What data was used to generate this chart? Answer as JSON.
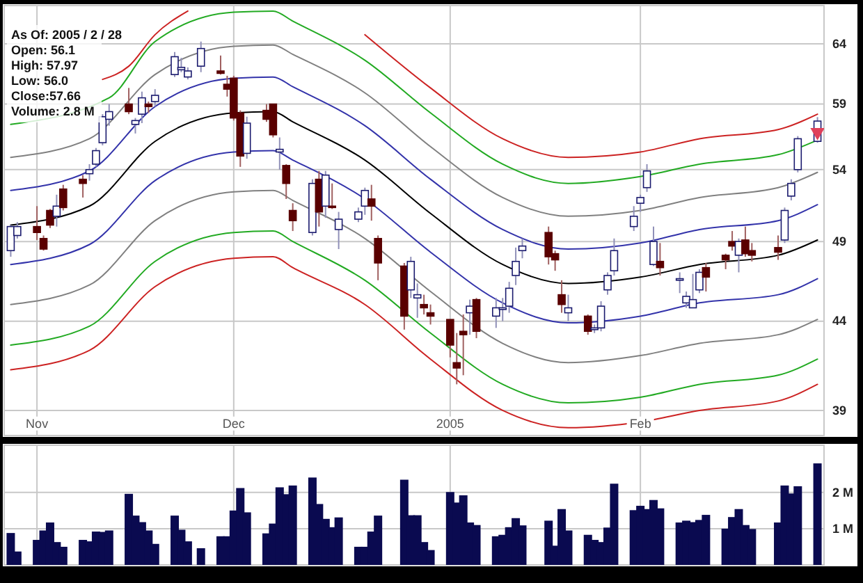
{
  "chart_data": [
    {
      "type": "candlestick",
      "log": true,
      "grid": true,
      "annotations": [
        "As Of: 2005 / 2 / 28",
        "Open: 56.1",
        "High: 57.97",
        "Low: 56.0",
        "Close:57.66",
        "Volume: 2.8 M"
      ],
      "xlim": [
        "2004-10-27",
        "2005-03-01"
      ],
      "xticks": [
        {
          "value": "2004-11-01",
          "label": "Nov"
        },
        {
          "value": "2004-12-01",
          "label": "Dec"
        },
        {
          "value": "2005-01-03",
          "label": "2005"
        },
        {
          "value": "2005-02-01",
          "label": "Feb"
        }
      ],
      "ylim": [
        37.7,
        67.4
      ],
      "yticks": [
        39,
        44,
        49,
        54,
        59,
        64
      ],
      "x": [
        "2004-10-28",
        "2004-10-29",
        "2004-11-01",
        "2004-11-02",
        "2004-11-03",
        "2004-11-04",
        "2004-11-05",
        "2004-11-08",
        "2004-11-09",
        "2004-11-10",
        "2004-11-11",
        "2004-11-12",
        "2004-11-15",
        "2004-11-16",
        "2004-11-17",
        "2004-11-18",
        "2004-11-19",
        "2004-11-22",
        "2004-11-23",
        "2004-11-24",
        "2004-11-26",
        "2004-11-29",
        "2004-11-30",
        "2004-12-01",
        "2004-12-02",
        "2004-12-03",
        "2004-12-06",
        "2004-12-07",
        "2004-12-08",
        "2004-12-09",
        "2004-12-10",
        "2004-12-13",
        "2004-12-14",
        "2004-12-15",
        "2004-12-16",
        "2004-12-17",
        "2004-12-20",
        "2004-12-21",
        "2004-12-22",
        "2004-12-23",
        "2004-12-27",
        "2004-12-28",
        "2004-12-29",
        "2004-12-30",
        "2004-12-31",
        "2005-01-03",
        "2005-01-04",
        "2005-01-05",
        "2005-01-06",
        "2005-01-07",
        "2005-01-10",
        "2005-01-11",
        "2005-01-12",
        "2005-01-13",
        "2005-01-14",
        "2005-01-18",
        "2005-01-19",
        "2005-01-20",
        "2005-01-21",
        "2005-01-24",
        "2005-01-25",
        "2005-01-26",
        "2005-01-27",
        "2005-01-28",
        "2005-01-31",
        "2005-02-01",
        "2005-02-02",
        "2005-02-03",
        "2005-02-04",
        "2005-02-07",
        "2005-02-08",
        "2005-02-09",
        "2005-02-10",
        "2005-02-11",
        "2005-02-14",
        "2005-02-15",
        "2005-02-16",
        "2005-02-17",
        "2005-02-18",
        "2005-02-22",
        "2005-02-23",
        "2005-02-24",
        "2005-02-25",
        "2005-02-28"
      ],
      "ohlc": [
        [
          48.4,
          50.1,
          48.0,
          50.0
        ],
        [
          49.4,
          50.3,
          49.2,
          50.0
        ],
        [
          50.0,
          51.4,
          49.1,
          49.6
        ],
        [
          49.2,
          49.4,
          48.4,
          48.5
        ],
        [
          51.1,
          51.2,
          49.9,
          50.1
        ],
        [
          50.7,
          52.2,
          50.0,
          51.4
        ],
        [
          52.6,
          52.9,
          51.1,
          51.3
        ],
        [
          53.3,
          53.6,
          52.0,
          53.0
        ],
        [
          53.7,
          54.4,
          53.2,
          54.0
        ],
        [
          54.4,
          55.6,
          54.2,
          55.4
        ],
        [
          56.0,
          58.2,
          55.8,
          58.0
        ],
        [
          57.8,
          59.0,
          57.3,
          58.4
        ],
        [
          59.0,
          60.3,
          58.2,
          58.4
        ],
        [
          57.4,
          57.9,
          56.7,
          57.7
        ],
        [
          58.2,
          60.0,
          57.5,
          59.5
        ],
        [
          59.0,
          59.2,
          58.3,
          58.8
        ],
        [
          59.2,
          60.2,
          58.8,
          59.7
        ],
        [
          61.4,
          63.3,
          61.2,
          62.9
        ],
        [
          61.8,
          62.8,
          61.6,
          62.0
        ],
        [
          61.2,
          62.0,
          61.0,
          61.7
        ],
        [
          62.1,
          64.2,
          61.6,
          63.6
        ],
        [
          61.7,
          63.0,
          61.4,
          61.5
        ],
        [
          60.6,
          61.3,
          59.6,
          60.2
        ],
        [
          61.1,
          61.3,
          57.7,
          57.9
        ],
        [
          58.3,
          58.5,
          54.2,
          55.0
        ],
        [
          55.2,
          58.0,
          54.8,
          57.5
        ],
        [
          58.5,
          59.0,
          57.6,
          57.8
        ],
        [
          59.0,
          59.0,
          56.4,
          56.6
        ],
        [
          55.3,
          56.4,
          54.0,
          55.5
        ],
        [
          54.3,
          54.4,
          51.9,
          53.0
        ],
        [
          51.1,
          51.6,
          49.7,
          50.4
        ],
        [
          49.6,
          53.3,
          49.4,
          53.0
        ],
        [
          53.3,
          53.9,
          50.0,
          51.0
        ],
        [
          51.4,
          53.9,
          50.6,
          53.6
        ],
        [
          51.4,
          53.0,
          51.2,
          51.3
        ],
        [
          49.8,
          51.0,
          48.5,
          50.5
        ],
        [
          50.5,
          51.3,
          50.3,
          51.0
        ],
        [
          51.4,
          52.7,
          50.8,
          52.5
        ],
        [
          51.9,
          52.9,
          50.4,
          51.4
        ],
        [
          49.2,
          49.4,
          46.5,
          47.6
        ],
        [
          47.4,
          47.6,
          43.5,
          44.3
        ],
        [
          45.9,
          48.0,
          45.4,
          47.7
        ],
        [
          45.4,
          46.3,
          44.2,
          45.6
        ],
        [
          45.0,
          45.6,
          44.4,
          44.8
        ],
        [
          44.5,
          45.0,
          43.8,
          44.3
        ],
        [
          44.1,
          44.1,
          41.9,
          42.6
        ],
        [
          41.6,
          43.3,
          40.4,
          41.3
        ],
        [
          43.4,
          44.4,
          40.9,
          43.2
        ],
        [
          44.5,
          45.3,
          43.2,
          44.9
        ],
        [
          45.3,
          45.4,
          43.0,
          43.4
        ],
        [
          44.3,
          45.4,
          43.6,
          44.8
        ],
        [
          44.7,
          45.4,
          44.0,
          44.8
        ],
        [
          44.9,
          46.4,
          44.5,
          46.0
        ],
        [
          46.8,
          48.6,
          46.2,
          47.7
        ],
        [
          48.4,
          49.2,
          47.9,
          48.7
        ],
        [
          49.6,
          50.0,
          47.5,
          48.0
        ],
        [
          48.2,
          48.4,
          47.1,
          47.8
        ],
        [
          45.6,
          46.5,
          44.5,
          45.0
        ],
        [
          44.5,
          45.6,
          44.0,
          44.8
        ],
        [
          44.3,
          44.4,
          43.2,
          43.4
        ],
        [
          43.5,
          43.8,
          43.3,
          43.6
        ],
        [
          43.6,
          45.2,
          43.4,
          44.9
        ],
        [
          45.9,
          47.0,
          45.6,
          46.8
        ],
        [
          47.1,
          49.2,
          46.8,
          48.4
        ],
        [
          50.0,
          51.4,
          49.7,
          50.7
        ],
        [
          51.6,
          52.2,
          51.0,
          52.0
        ],
        [
          52.7,
          54.4,
          52.4,
          53.9
        ],
        [
          47.5,
          50.0,
          47.4,
          49.0
        ],
        [
          47.7,
          48.9,
          46.8,
          47.3
        ],
        [
          46.5,
          47.0,
          45.7,
          46.6
        ],
        [
          45.1,
          45.8,
          44.8,
          45.5
        ],
        [
          44.8,
          46.9,
          44.8,
          45.3
        ],
        [
          45.9,
          47.2,
          45.7,
          47.0
        ],
        [
          47.3,
          47.6,
          45.8,
          46.7
        ],
        [
          48.1,
          48.2,
          47.2,
          47.8
        ],
        [
          49.0,
          49.7,
          48.4,
          48.7
        ],
        [
          48.1,
          49.2,
          47.0,
          49.0
        ],
        [
          49.1,
          50.0,
          48.0,
          48.2
        ],
        [
          48.4,
          48.9,
          47.7,
          48.1
        ],
        [
          48.6,
          49.4,
          47.8,
          48.3
        ],
        [
          49.1,
          51.3,
          48.9,
          51.1
        ],
        [
          52.1,
          53.3,
          51.8,
          53.0
        ],
        [
          54.0,
          56.5,
          53.8,
          56.3
        ],
        [
          56.1,
          57.97,
          56.0,
          57.66
        ]
      ],
      "series": [
        {
          "type": "line",
          "color": "#cc2222",
          "x": [
            "2004-11-11",
            "2004-11-15",
            "2004-11-19",
            "2004-11-24",
            "2004-12-01",
            "2004-12-21",
            "2004-12-31",
            "2005-01-11",
            "2005-01-21",
            "2005-02-01",
            "2005-02-10",
            "2005-02-22",
            "2005-02-28"
          ],
          "values": [
            61.0,
            62.1,
            64.8,
            66.9,
            null,
            64.8,
            60.3,
            56.3,
            54.9,
            55.3,
            56.3,
            57.0,
            58.2
          ]
        },
        {
          "type": "line",
          "color": "#22aa22",
          "x": [
            "2004-10-28",
            "2004-11-12",
            "2004-11-19",
            "2004-12-01",
            "2004-12-07",
            "2004-12-10",
            "2004-12-21",
            "2004-12-31",
            "2005-01-11",
            "2005-01-21",
            "2005-02-01",
            "2005-02-10",
            "2005-02-22",
            "2005-02-28"
          ],
          "values": [
            57.4,
            59.5,
            64.2,
            66.8,
            66.9,
            66.0,
            62.6,
            58.3,
            54.4,
            53.0,
            53.5,
            54.4,
            55.1,
            56.2
          ]
        },
        {
          "type": "line",
          "color": "#808080",
          "x": [
            "2004-10-28",
            "2004-11-09",
            "2004-11-19",
            "2004-12-01",
            "2004-12-07",
            "2004-12-10",
            "2004-12-21",
            "2004-12-31",
            "2005-01-11",
            "2005-01-21",
            "2005-02-01",
            "2005-02-10",
            "2005-02-22",
            "2005-02-28"
          ],
          "values": [
            54.9,
            56.3,
            61.4,
            63.8,
            63.9,
            63.1,
            59.9,
            55.7,
            52.0,
            50.7,
            51.1,
            52.0,
            52.7,
            53.8
          ]
        },
        {
          "type": "line",
          "color": "#3333aa",
          "x": [
            "2004-10-28",
            "2004-11-09",
            "2004-11-19",
            "2004-12-01",
            "2004-12-07",
            "2004-12-10",
            "2004-12-21",
            "2004-12-31",
            "2005-01-11",
            "2005-01-21",
            "2005-02-01",
            "2005-02-10",
            "2005-02-22",
            "2005-02-28"
          ],
          "values": [
            52.5,
            53.9,
            58.8,
            61.1,
            61.2,
            60.4,
            57.3,
            53.3,
            49.8,
            48.5,
            48.9,
            49.8,
            50.4,
            51.5
          ]
        },
        {
          "type": "line",
          "color": "#000000",
          "x": [
            "2004-10-28",
            "2004-11-09",
            "2004-11-19",
            "2004-12-01",
            "2004-12-07",
            "2004-12-10",
            "2004-12-21",
            "2004-12-31",
            "2005-01-11",
            "2005-01-21",
            "2005-02-01",
            "2005-02-10",
            "2005-02-22",
            "2005-02-28"
          ],
          "values": [
            50.1,
            51.4,
            56.1,
            58.3,
            58.4,
            57.6,
            54.7,
            50.9,
            47.5,
            46.3,
            46.7,
            47.5,
            48.1,
            49.1
          ]
        },
        {
          "type": "line",
          "color": "#3333aa",
          "x": [
            "2004-10-28",
            "2004-11-09",
            "2004-11-19",
            "2004-12-01",
            "2004-12-07",
            "2004-12-10",
            "2004-12-21",
            "2004-12-31",
            "2005-01-11",
            "2005-01-21",
            "2005-02-01",
            "2005-02-10",
            "2005-02-22",
            "2005-02-28"
          ],
          "values": [
            47.5,
            48.8,
            53.2,
            55.3,
            55.4,
            54.7,
            51.9,
            48.3,
            45.1,
            43.9,
            44.3,
            45.1,
            45.6,
            46.6
          ]
        },
        {
          "type": "line",
          "color": "#808080",
          "x": [
            "2004-10-28",
            "2004-11-09",
            "2004-11-19",
            "2004-12-01",
            "2004-12-07",
            "2004-12-10",
            "2004-12-21",
            "2004-12-31",
            "2005-01-11",
            "2005-01-21",
            "2005-02-01",
            "2005-02-10",
            "2005-02-22",
            "2005-02-28"
          ],
          "values": [
            45.0,
            46.2,
            50.4,
            52.4,
            52.5,
            51.8,
            49.2,
            45.8,
            42.7,
            41.6,
            42.0,
            42.7,
            43.2,
            44.1
          ]
        },
        {
          "type": "line",
          "color": "#22aa22",
          "x": [
            "2004-10-28",
            "2004-11-09",
            "2004-11-19",
            "2004-12-01",
            "2004-12-07",
            "2004-12-10",
            "2004-12-21",
            "2004-12-31",
            "2005-01-11",
            "2005-01-21",
            "2005-02-01",
            "2005-02-10",
            "2005-02-22",
            "2005-02-28"
          ],
          "values": [
            42.6,
            43.7,
            47.7,
            49.6,
            49.7,
            49.0,
            46.5,
            43.3,
            40.4,
            39.4,
            39.7,
            40.4,
            40.9,
            41.8
          ]
        },
        {
          "type": "line",
          "color": "#cc2222",
          "x": [
            "2004-10-28",
            "2004-11-09",
            "2004-11-19",
            "2004-12-01",
            "2004-12-07",
            "2004-12-10",
            "2004-12-21",
            "2004-12-31",
            "2005-01-11",
            "2005-01-21",
            "2005-02-01",
            "2005-02-10",
            "2005-02-22",
            "2005-02-28"
          ],
          "values": [
            41.2,
            42.3,
            46.1,
            47.9,
            48.0,
            47.3,
            45.0,
            41.8,
            39.0,
            38.1,
            38.4,
            39.0,
            39.5,
            40.4
          ]
        },
        {
          "type": "scatter",
          "color": "#e0405a",
          "marker": "triangle",
          "x": [
            "2005-02-28"
          ],
          "values": [
            56.8
          ]
        }
      ]
    },
    {
      "type": "bar",
      "grid": true,
      "tick_labels": "y",
      "color": "#0a0a50",
      "xlim": [
        "2004-10-27",
        "2005-03-01"
      ],
      "xticks": [
        {
          "value": "2004-11-01",
          "label": null
        },
        {
          "value": "2004-12-01",
          "label": null
        },
        {
          "value": "2005-01-03",
          "label": null
        },
        {
          "value": "2005-02-01",
          "label": null
        }
      ],
      "ylim": [
        0,
        3.3
      ],
      "yticks": [
        {
          "value": 1,
          "label": "1 M"
        },
        {
          "value": 2,
          "label": "2 M"
        }
      ],
      "x": [
        "2004-10-28",
        "2004-10-29",
        "2004-11-01",
        "2004-11-02",
        "2004-11-03",
        "2004-11-04",
        "2004-11-05",
        "2004-11-08",
        "2004-11-09",
        "2004-11-10",
        "2004-11-11",
        "2004-11-12",
        "2004-11-15",
        "2004-11-16",
        "2004-11-17",
        "2004-11-18",
        "2004-11-19",
        "2004-11-22",
        "2004-11-23",
        "2004-11-24",
        "2004-11-26",
        "2004-11-29",
        "2004-11-30",
        "2004-12-01",
        "2004-12-02",
        "2004-12-03",
        "2004-12-06",
        "2004-12-07",
        "2004-12-08",
        "2004-12-09",
        "2004-12-10",
        "2004-12-13",
        "2004-12-14",
        "2004-12-15",
        "2004-12-16",
        "2004-12-17",
        "2004-12-20",
        "2004-12-21",
        "2004-12-22",
        "2004-12-23",
        "2004-12-27",
        "2004-12-28",
        "2004-12-29",
        "2004-12-30",
        "2004-12-31",
        "2005-01-03",
        "2005-01-04",
        "2005-01-05",
        "2005-01-06",
        "2005-01-07",
        "2005-01-10",
        "2005-01-11",
        "2005-01-12",
        "2005-01-13",
        "2005-01-14",
        "2005-01-18",
        "2005-01-19",
        "2005-01-20",
        "2005-01-21",
        "2005-01-24",
        "2005-01-25",
        "2005-01-26",
        "2005-01-27",
        "2005-01-28",
        "2005-01-31",
        "2005-02-01",
        "2005-02-02",
        "2005-02-03",
        "2005-02-04",
        "2005-02-07",
        "2005-02-08",
        "2005-02-09",
        "2005-02-10",
        "2005-02-11",
        "2005-02-14",
        "2005-02-15",
        "2005-02-16",
        "2005-02-17",
        "2005-02-18",
        "2005-02-22",
        "2005-02-23",
        "2005-02-24",
        "2005-02-25",
        "2005-02-28"
      ],
      "values": [
        0.88,
        0.37,
        0.69,
        0.95,
        1.17,
        0.63,
        0.5,
        0.69,
        0.65,
        0.92,
        0.91,
        0.95,
        1.96,
        1.36,
        1.18,
        0.95,
        0.58,
        1.36,
        0.97,
        0.65,
        0.46,
        0.79,
        0.79,
        1.5,
        2.12,
        1.45,
        0.87,
        1.14,
        2.14,
        1.95,
        2.19,
        2.41,
        1.68,
        1.27,
        1.04,
        1.31,
        0.5,
        0.5,
        0.92,
        1.36,
        2.35,
        1.37,
        1.37,
        0.63,
        0.41,
        2.01,
        1.72,
        1.92,
        1.17,
        1.1,
        0.79,
        0.83,
        1.04,
        1.29,
        1.09,
        1.22,
        0.53,
        1.54,
        0.95,
        0.83,
        0.69,
        0.63,
        1.03,
        2.24,
        1.51,
        1.63,
        1.54,
        1.79,
        1.56,
        1.17,
        1.22,
        1.18,
        1.24,
        1.38,
        1.0,
        1.32,
        1.54,
        1.1,
        0.99,
        1.17,
        2.19,
        1.97,
        2.17,
        2.8
      ]
    }
  ]
}
